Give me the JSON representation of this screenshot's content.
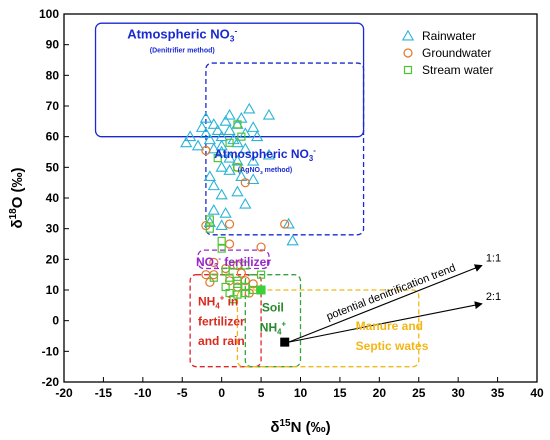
{
  "chart_data": {
    "type": "scatter",
    "xlabel": "δ15N (‰)",
    "ylabel": "δ18O (‰)",
    "xlim": [
      -20,
      40
    ],
    "ylim": [
      -20,
      100
    ],
    "xticks": [
      -20,
      -15,
      -10,
      -5,
      0,
      5,
      10,
      15,
      20,
      25,
      30,
      35,
      40
    ],
    "yticks": [
      -20,
      -10,
      0,
      10,
      20,
      30,
      40,
      50,
      60,
      70,
      80,
      90,
      100
    ],
    "grid": false,
    "legend_position": "top-right",
    "series": [
      {
        "name": "Rainwater",
        "marker": "triangle",
        "color": "#2bb4d6",
        "points": [
          [
            -4.5,
            58
          ],
          [
            -4,
            60
          ],
          [
            -3,
            57
          ],
          [
            -2.5,
            63
          ],
          [
            -2,
            66
          ],
          [
            -2,
            61
          ],
          [
            -1.5,
            59
          ],
          [
            -1,
            64
          ],
          [
            -0.5,
            62
          ],
          [
            0,
            57
          ],
          [
            0,
            60
          ],
          [
            0.5,
            65
          ],
          [
            1,
            67
          ],
          [
            1,
            62
          ],
          [
            1.5,
            59
          ],
          [
            2,
            64
          ],
          [
            2.5,
            66
          ],
          [
            3,
            61
          ],
          [
            3.5,
            69
          ],
          [
            4,
            63
          ],
          [
            4.5,
            60
          ],
          [
            6,
            67
          ],
          [
            0,
            55
          ],
          [
            1,
            53
          ],
          [
            2,
            58
          ],
          [
            -1,
            56
          ],
          [
            3,
            56
          ],
          [
            4,
            52
          ],
          [
            6,
            54
          ],
          [
            2,
            52
          ],
          [
            0,
            50
          ],
          [
            1,
            49
          ],
          [
            -1.5,
            47
          ],
          [
            2.5,
            47
          ],
          [
            4,
            46
          ],
          [
            -1,
            44
          ],
          [
            2,
            42
          ],
          [
            0,
            41
          ],
          [
            3,
            38
          ],
          [
            -1,
            36
          ],
          [
            0.5,
            35
          ],
          [
            -1.5,
            32
          ],
          [
            0,
            31
          ],
          [
            8.5,
            31.5
          ],
          [
            9,
            26
          ]
        ]
      },
      {
        "name": "Groundwater",
        "marker": "circle",
        "color": "#e2762a",
        "points": [
          [
            -2,
            55.5
          ],
          [
            2,
            50
          ],
          [
            3,
            45
          ],
          [
            -2,
            31
          ],
          [
            1,
            31.5
          ],
          [
            8,
            31.5
          ],
          [
            1,
            25
          ],
          [
            5,
            24
          ],
          [
            -1,
            19
          ],
          [
            2,
            18
          ],
          [
            -2,
            15
          ],
          [
            -1.5,
            12.5
          ],
          [
            -1,
            15
          ],
          [
            0.5,
            17
          ],
          [
            1,
            13
          ],
          [
            2,
            11
          ],
          [
            3,
            13
          ],
          [
            3.5,
            9
          ],
          [
            4,
            12
          ],
          [
            2.5,
            15.5
          ]
        ]
      },
      {
        "name": "Stream water",
        "marker": "square",
        "color": "#4cc535",
        "points": [
          [
            2,
            64
          ],
          [
            2.5,
            60
          ],
          [
            1,
            58
          ],
          [
            -0.5,
            53
          ],
          [
            2,
            50
          ],
          [
            -1.5,
            33
          ],
          [
            -1.5,
            30
          ],
          [
            0,
            26
          ],
          [
            0,
            23.5
          ],
          [
            1.5,
            18
          ],
          [
            3,
            18
          ],
          [
            0.5,
            16
          ],
          [
            -1,
            14
          ],
          [
            1,
            14
          ],
          [
            2,
            13
          ],
          [
            3,
            11
          ],
          [
            4,
            10
          ],
          [
            1,
            9
          ],
          [
            2,
            8.5
          ],
          [
            3,
            9
          ],
          [
            2,
            12
          ],
          [
            5,
            15
          ],
          [
            0.5,
            11
          ],
          [
            1.5,
            7
          ]
        ]
      }
    ],
    "extra_points": [
      {
        "x": 5,
        "y": 10,
        "marker": "filled-square",
        "color": "#3ad13a"
      },
      {
        "x": 8,
        "y": -7,
        "marker": "filled-square",
        "color": "#000000"
      }
    ],
    "regions": [
      {
        "id": "atmospheric-denitrifier",
        "x": [
          -16,
          18
        ],
        "y": [
          60,
          97
        ],
        "stroke": "#1a2ad0",
        "dash": false,
        "label": "Atmospheric NO3-",
        "sublabel": "(Denitrifier method)",
        "label_color": "#1a2ad0"
      },
      {
        "id": "atmospheric-agno3",
        "x": [
          -2,
          18
        ],
        "y": [
          28,
          84
        ],
        "stroke": "#1a2ad0",
        "dash": true,
        "label": "Atmospheric NO3-",
        "sublabel": "(AgNO3 method)",
        "label_color": "#1a2ad0"
      },
      {
        "id": "no3-fertilizer",
        "x": [
          -3,
          6
        ],
        "y": [
          17,
          23
        ],
        "stroke": "#9b27c9",
        "dash": true,
        "label": "NO3- fertilizer",
        "label_color": "#9b27c9"
      },
      {
        "id": "nh4-fertilizer-rain",
        "x": [
          -4,
          5
        ],
        "y": [
          -15,
          15
        ],
        "stroke": "#e0262b",
        "dash": true,
        "label_lines": [
          "NH4+ in",
          "fertilizer",
          "and rain"
        ],
        "label_color": "#d92a1c"
      },
      {
        "id": "soil-nh4",
        "x": [
          3,
          10
        ],
        "y": [
          -15,
          15
        ],
        "stroke": "#35a33a",
        "dash": true,
        "label_lines": [
          "Soil",
          "NH4+"
        ],
        "label_color": "#268a2b"
      },
      {
        "id": "manure-septic",
        "x": [
          2,
          25
        ],
        "y": [
          -15,
          10
        ],
        "stroke": "#f2b616",
        "dash": true,
        "label_lines": [
          "Manure and",
          "Septic wates"
        ],
        "label_color": "#f2b616"
      }
    ],
    "annotations": [
      {
        "text": "potential denitrification trend",
        "color": "#000000"
      },
      {
        "text": "1:1",
        "from": [
          8,
          -7
        ],
        "to": [
          33,
          18
        ]
      },
      {
        "text": "2:1",
        "from": [
          8,
          -7
        ],
        "to": [
          33,
          5.5
        ]
      }
    ]
  }
}
